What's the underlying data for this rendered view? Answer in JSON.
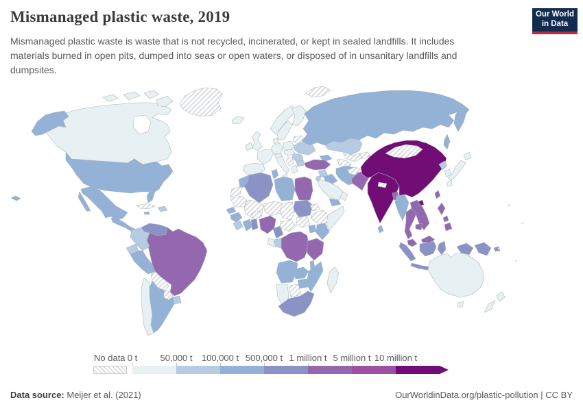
{
  "header": {
    "title": "Mismanaged plastic waste, 2019",
    "subtitle": "Mismanaged plastic waste is waste that is not recycled, incinerated, or kept in sealed landfills. It includes materials burned in open pits, dumped into seas or open waters, or disposed of in unsanitary landfills and dumpsites.",
    "logo_line1": "Our World",
    "logo_line2": "in Data",
    "logo_colors": {
      "background": "#122c50",
      "stripe": "#c0283c",
      "text": "#ffffff"
    }
  },
  "legend": {
    "no_data_label": "No data",
    "tick_labels": [
      "0 t",
      "50,000 t",
      "100,000 t",
      "500,000 t",
      "1 million t",
      "5 million t",
      "10 million t"
    ]
  },
  "footer": {
    "source_label": "Data source:",
    "source_value": "Meijer et al. (2021)",
    "credit": "OurWorldinData.org/plastic-pollution | CC BY"
  },
  "chart_data": {
    "type": "choropleth_map",
    "title": "Mismanaged plastic waste, 2019",
    "unit": "tonnes",
    "legend_position": "bottom",
    "no_data_style": "diagonal-hatch",
    "bin_colors": [
      "#e7f1f3",
      "#b5cce2",
      "#93b2d6",
      "#8b93c6",
      "#9468af",
      "#9c51a5",
      "#730d76"
    ],
    "bin_ranges": [
      "0 t – 50,000 t",
      "50,000 t – 100,000 t",
      "100,000 t – 500,000 t",
      "500,000 t – 1 million t",
      "1 million t – 5 million t",
      "5 million t – 10 million t",
      "10 million t +"
    ],
    "country_bins": {
      "canada": 0,
      "arctic-islands": 0,
      "alaska": 2,
      "usa": 2,
      "mexico": 2,
      "central-america": 2,
      "cuba": -1,
      "hispaniola": 1,
      "jamaica": 2,
      "hawaii": 2,
      "greenland": -1,
      "svalbard": -1,
      "venezuela": 3,
      "colombia": 1,
      "ecuador": 1,
      "peru": 2,
      "brazil": 4,
      "bolivia": -1,
      "paraguay": -1,
      "uruguay": 1,
      "argentina": 2,
      "chile": 0,
      "iceland": 0,
      "uk": 0,
      "ireland": 0,
      "norway": 0,
      "sweden": 0,
      "finland": 0,
      "denmark": 0,
      "germany": 0,
      "poland": 0,
      "belarus": -1,
      "ukraine": 1,
      "france": 0,
      "spain": 0,
      "italy": 0,
      "alpine": 0,
      "central-europe": 0,
      "romania": 1,
      "balkans": -1,
      "greece": 0,
      "bulgaria": 1,
      "russia": 2,
      "kazakhstan": 1,
      "uzbekistan": -1,
      "turkmenistan": -1,
      "kyrgyzstan": -1,
      "caucasus": 2,
      "turkey": 4,
      "syria": 1,
      "iraq": 2,
      "iran": 2,
      "saudi-arabia": 0,
      "yemen": 2,
      "oman": 0,
      "jordan": 1,
      "afghanistan": -1,
      "pakistan": 4,
      "india": 6,
      "nepal": -1,
      "bangladesh": 4,
      "sri-lanka": 2,
      "china": 6,
      "mongolia": -1,
      "taiwan": 4,
      "north-korea": 1,
      "south-korea": 0,
      "japan": 0,
      "myanmar": 2,
      "thailand": 4,
      "vietnam": 4,
      "cambodia": 4,
      "malaysia": 4,
      "indonesia": 3,
      "philippines": 4,
      "papua-new-guinea": 3,
      "morocco": 2,
      "western-sahara": -1,
      "algeria": 3,
      "tunisia": 2,
      "libya": 2,
      "egypt": 4,
      "mauritania": -1,
      "mali": -1,
      "senegal": 2,
      "guinea": 2,
      "sierra-leone": 1,
      "ivory-coast": 2,
      "ghana": 3,
      "burkina-faso": -1,
      "niger": -1,
      "nigeria": 4,
      "chad": -1,
      "sudan": 3,
      "eritrea": -1,
      "ethiopia": -1,
      "somalia": 0,
      "south-sudan": -1,
      "central-african-republic": -1,
      "cameroon": 3,
      "drc": 4,
      "congo": 1,
      "gabon": 0,
      "uganda": 2,
      "kenya": 2,
      "tanzania": 4,
      "angola": 2,
      "zambia": 2,
      "malawi": 2,
      "mozambique": 2,
      "zimbabwe": 2,
      "botswana": -1,
      "namibia": 0,
      "south-africa": 3,
      "madagascar": 0,
      "australia": 0,
      "tasmania": 0,
      "new-zealand": 0
    }
  }
}
